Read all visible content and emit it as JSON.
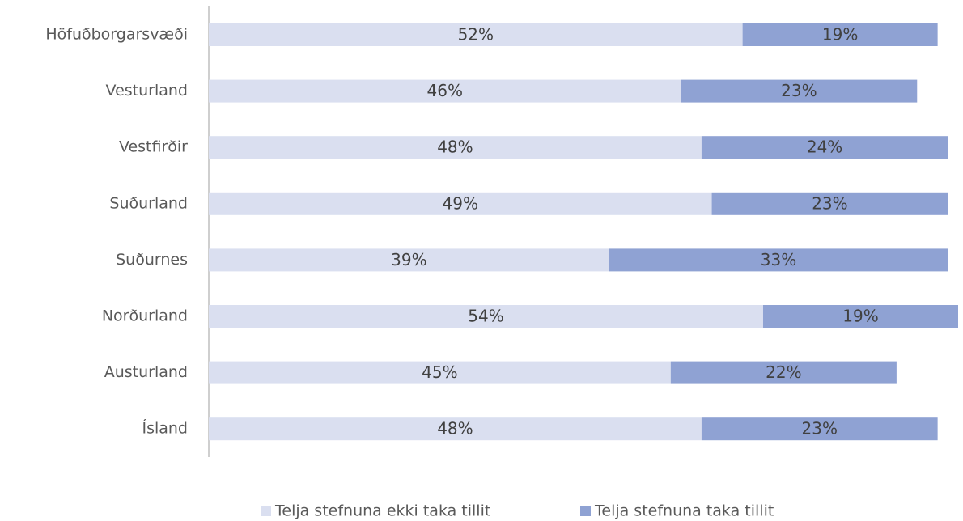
{
  "chart_data": {
    "type": "stacked-bar-horizontal",
    "categories": [
      "Höfuðborgarsvæði",
      "Vesturland",
      "Vestfirðir",
      "Suðurland",
      "Suðurnes",
      "Norðurland",
      "Austurland",
      "Ísland"
    ],
    "series": [
      {
        "name": "Telja stefnuna ekki taka tillit",
        "color": "#dadff0",
        "values": [
          52,
          46,
          48,
          49,
          39,
          54,
          45,
          48
        ],
        "value_labels": [
          "52%",
          "46%",
          "48%",
          "49%",
          "39%",
          "54%",
          "45%",
          "48%"
        ]
      },
      {
        "name": "Telja stefnuna taka tillit",
        "color": "#8fa2d3",
        "values": [
          19,
          23,
          24,
          23,
          33,
          19,
          22,
          23
        ],
        "value_labels": [
          "19%",
          "23%",
          "24%",
          "23%",
          "33%",
          "19%",
          "22%",
          "23%"
        ]
      }
    ],
    "legend": "bottom"
  }
}
